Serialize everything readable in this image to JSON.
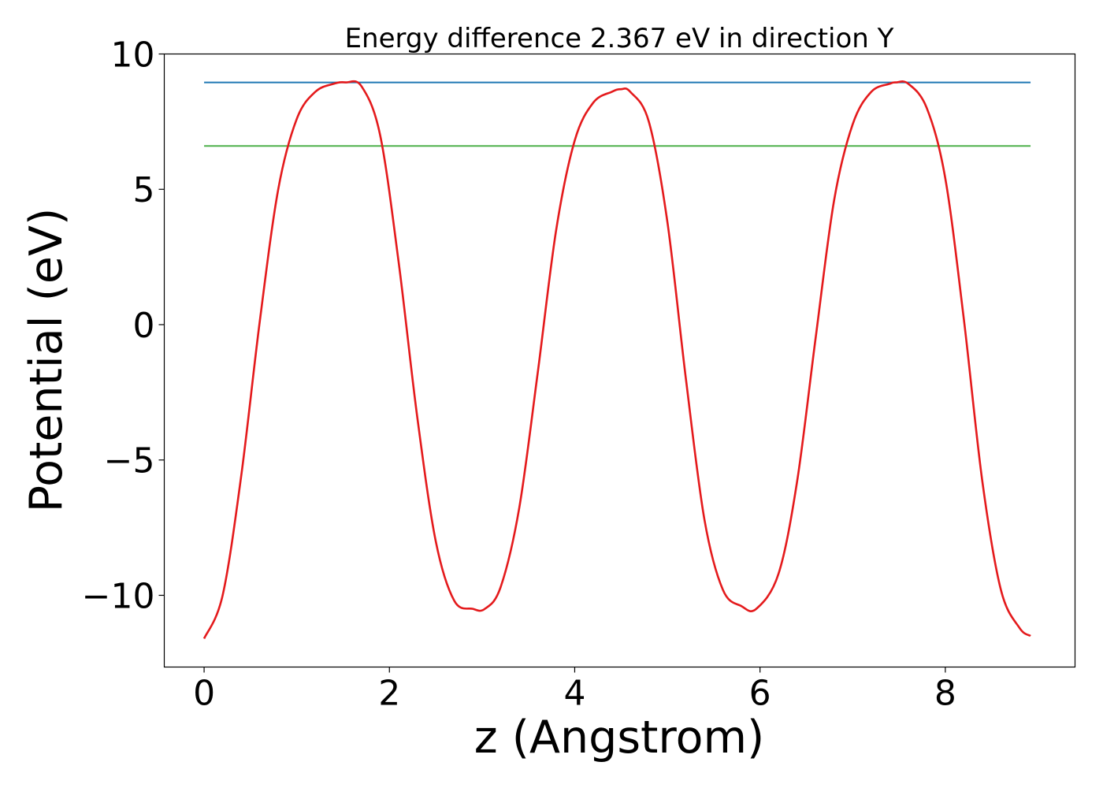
{
  "chart_data": {
    "type": "line",
    "title": "Energy difference 2.367 eV in direction Y",
    "xlabel": "z (Angstrom)",
    "ylabel": "Potential (eV)",
    "xlim": [
      -0.43,
      9.4
    ],
    "ylim": [
      -12.65,
      10.0
    ],
    "xticks": [
      0,
      2,
      4,
      6,
      8
    ],
    "xtick_labels": [
      "0",
      "2",
      "4",
      "6",
      "8"
    ],
    "yticks": [
      10,
      5,
      0,
      -5,
      -10
    ],
    "ytick_labels": [
      "10",
      "5",
      "0",
      "−5",
      "−10"
    ],
    "grid": false,
    "legend": "none",
    "series": [
      {
        "color": "#e41a1c",
        "x": [
          0.0,
          0.2,
          0.4,
          0.6,
          0.8,
          1.0,
          1.2,
          1.4,
          1.53,
          1.7,
          1.9,
          2.1,
          2.3,
          2.5,
          2.7,
          2.9,
          3.03,
          3.2,
          3.4,
          3.6,
          3.8,
          4.0,
          4.2,
          4.4,
          4.5,
          4.6,
          4.8,
          5.0,
          5.2,
          5.4,
          5.6,
          5.8,
          5.96,
          6.2,
          6.4,
          6.6,
          6.8,
          7.0,
          7.2,
          7.4,
          7.47,
          7.6,
          7.8,
          8.0,
          8.2,
          8.4,
          8.6,
          8.8,
          8.92
        ],
        "y": [
          -11.6,
          -10.0,
          -5.6,
          0.1,
          5.0,
          7.6,
          8.6,
          8.9,
          8.95,
          8.8,
          7.0,
          2.3,
          -3.4,
          -8.0,
          -10.2,
          -10.5,
          -10.5,
          -9.7,
          -6.8,
          -1.8,
          3.5,
          6.8,
          8.2,
          8.6,
          8.7,
          8.6,
          7.5,
          3.8,
          -2.0,
          -7.2,
          -9.8,
          -10.4,
          -10.5,
          -9.2,
          -5.8,
          -0.5,
          4.6,
          7.4,
          8.6,
          8.9,
          8.95,
          8.9,
          8.0,
          5.4,
          0.2,
          -5.8,
          -9.8,
          -11.2,
          -11.5
        ]
      },
      {
        "color": "#1f77b4",
        "x": [
          0.0,
          8.92
        ],
        "y": [
          8.95,
          8.95
        ]
      },
      {
        "color": "#4daf4a",
        "x": [
          0.0,
          8.92
        ],
        "y": [
          6.6,
          6.6
        ]
      }
    ]
  }
}
